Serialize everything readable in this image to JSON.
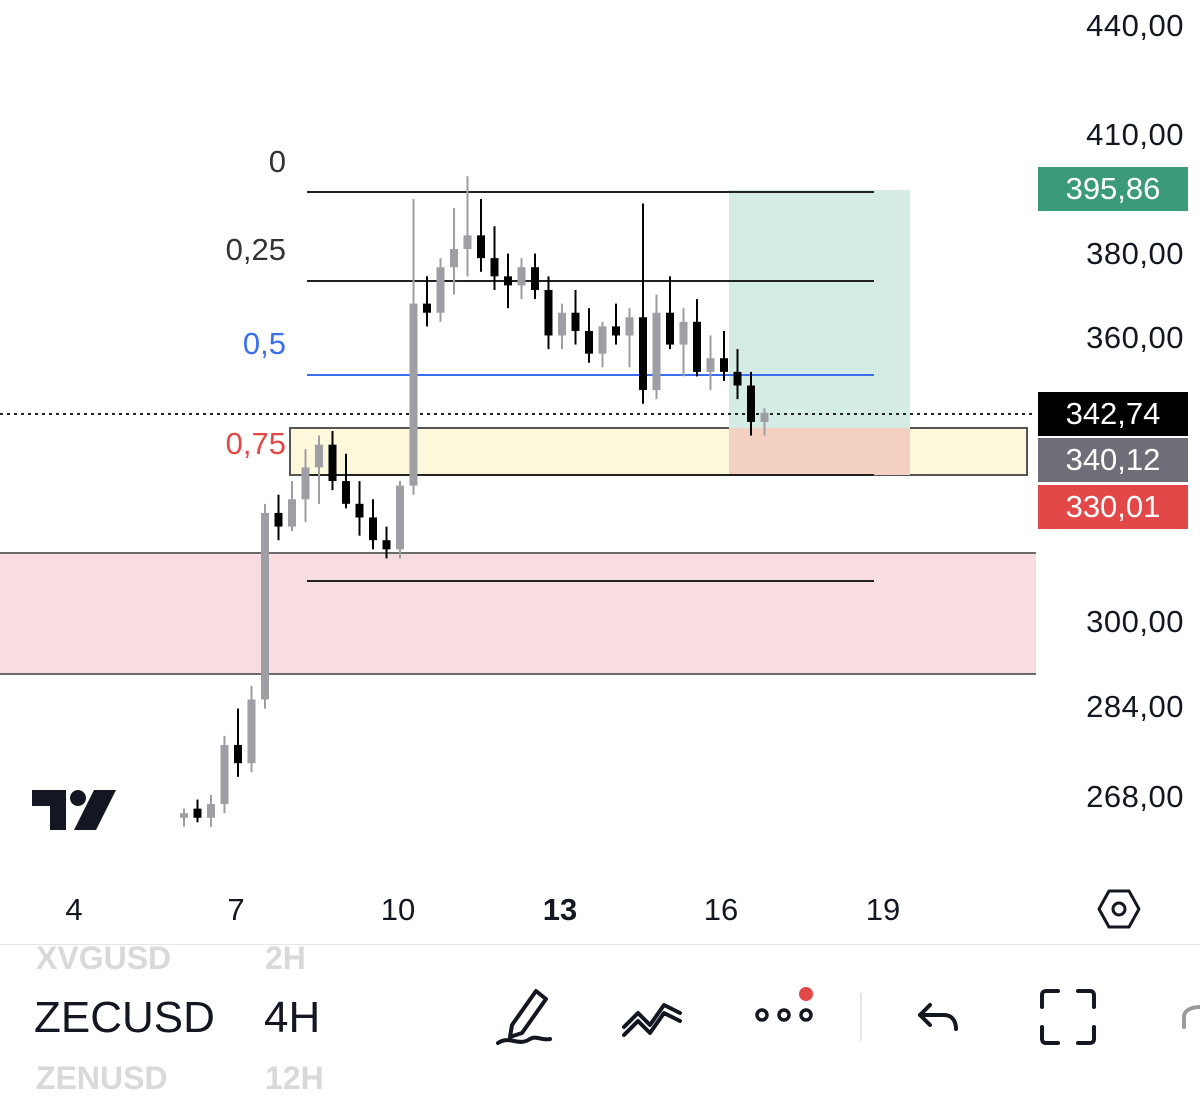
{
  "chart_data": {
    "type": "candlestick",
    "symbol": "ZECUSD",
    "interval": "4H",
    "x_ticks": [
      "4",
      "7",
      "10",
      "13",
      "16",
      "19"
    ],
    "y_ticks": [
      "440,00",
      "410,00",
      "380,00",
      "360,00",
      "300,00",
      "284,00",
      "268,00"
    ],
    "price_tags": {
      "target": "395,86",
      "last": "342,74",
      "entry": "340,12",
      "stop": "330,01"
    },
    "fib_levels": [
      {
        "label": "0",
        "price": 396
      },
      {
        "label": "0,25",
        "price": 376
      },
      {
        "label": "0,5",
        "price": 353
      },
      {
        "label": "0,75",
        "price": 333
      }
    ],
    "zones": [
      {
        "kind": "support-zone",
        "from": 289,
        "to": 317
      },
      {
        "kind": "order-block",
        "from": 330,
        "to": 341
      }
    ],
    "position": {
      "entry": 340.12,
      "target": 395.86,
      "stop": 330.01
    },
    "candles_approx": [
      {
        "o": 254,
        "h": 256,
        "l": 252,
        "c": 255
      },
      {
        "o": 256,
        "h": 258,
        "l": 253,
        "c": 254
      },
      {
        "o": 254,
        "h": 259,
        "l": 252,
        "c": 257
      },
      {
        "o": 257,
        "h": 272,
        "l": 255,
        "c": 270
      },
      {
        "o": 270,
        "h": 278,
        "l": 263,
        "c": 266
      },
      {
        "o": 266,
        "h": 283,
        "l": 264,
        "c": 280
      },
      {
        "o": 280,
        "h": 323,
        "l": 278,
        "c": 321
      },
      {
        "o": 321,
        "h": 325,
        "l": 315,
        "c": 318
      },
      {
        "o": 318,
        "h": 328,
        "l": 317,
        "c": 324
      },
      {
        "o": 324,
        "h": 335,
        "l": 319,
        "c": 331
      },
      {
        "o": 331,
        "h": 338,
        "l": 323,
        "c": 336
      },
      {
        "o": 336,
        "h": 339,
        "l": 326,
        "c": 328
      },
      {
        "o": 328,
        "h": 334,
        "l": 322,
        "c": 323
      },
      {
        "o": 323,
        "h": 328,
        "l": 316,
        "c": 320
      },
      {
        "o": 320,
        "h": 324,
        "l": 313,
        "c": 315
      },
      {
        "o": 315,
        "h": 318,
        "l": 311,
        "c": 313
      },
      {
        "o": 313,
        "h": 328,
        "l": 311,
        "c": 327
      },
      {
        "o": 327,
        "h": 390,
        "l": 325,
        "c": 367
      },
      {
        "o": 367,
        "h": 373,
        "l": 362,
        "c": 365
      },
      {
        "o": 365,
        "h": 377,
        "l": 363,
        "c": 375
      },
      {
        "o": 375,
        "h": 388,
        "l": 369,
        "c": 379
      },
      {
        "o": 379,
        "h": 395,
        "l": 373,
        "c": 382
      },
      {
        "o": 382,
        "h": 390,
        "l": 374,
        "c": 377
      },
      {
        "o": 377,
        "h": 384,
        "l": 370,
        "c": 373
      },
      {
        "o": 373,
        "h": 378,
        "l": 366,
        "c": 371
      },
      {
        "o": 371,
        "h": 377,
        "l": 368,
        "c": 375
      },
      {
        "o": 375,
        "h": 378,
        "l": 368,
        "c": 370
      },
      {
        "o": 370,
        "h": 373,
        "l": 357,
        "c": 360
      },
      {
        "o": 360,
        "h": 367,
        "l": 357,
        "c": 365
      },
      {
        "o": 365,
        "h": 370,
        "l": 358,
        "c": 361
      },
      {
        "o": 361,
        "h": 366,
        "l": 354,
        "c": 356
      },
      {
        "o": 356,
        "h": 363,
        "l": 353,
        "c": 362
      },
      {
        "o": 362,
        "h": 367,
        "l": 358,
        "c": 360
      },
      {
        "o": 360,
        "h": 366,
        "l": 353,
        "c": 364
      },
      {
        "o": 364,
        "h": 389,
        "l": 345,
        "c": 348
      },
      {
        "o": 348,
        "h": 369,
        "l": 346,
        "c": 365
      },
      {
        "o": 365,
        "h": 373,
        "l": 357,
        "c": 358
      },
      {
        "o": 358,
        "h": 366,
        "l": 351,
        "c": 363
      },
      {
        "o": 363,
        "h": 368,
        "l": 351,
        "c": 352
      },
      {
        "o": 352,
        "h": 360,
        "l": 348,
        "c": 355
      },
      {
        "o": 355,
        "h": 361,
        "l": 350,
        "c": 352
      },
      {
        "o": 352,
        "h": 357,
        "l": 346,
        "c": 349
      },
      {
        "o": 349,
        "h": 352,
        "l": 338,
        "c": 341
      },
      {
        "o": 341,
        "h": 344,
        "l": 338,
        "c": 343
      }
    ]
  },
  "toolbar": {
    "symbol_prev": "XVGUSD",
    "interval_prev": "2H",
    "symbol": "ZECUSD",
    "interval": "4H",
    "symbol_next": "ZENUSD",
    "interval_next": "12H"
  },
  "colors": {
    "up": "#9e9ea4",
    "down": "#000000",
    "target_tag": "#3a9a7a",
    "last_tag": "#000000",
    "entry_tag": "#6e6e78",
    "stop_tag": "#e34848",
    "fib_mid": "#3b6ff0",
    "fib_low": "#e34848"
  }
}
